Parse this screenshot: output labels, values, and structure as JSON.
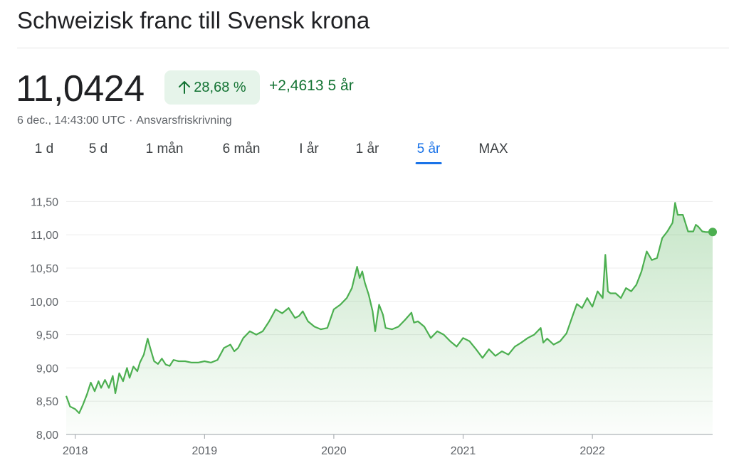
{
  "header": {
    "title": "Schweizisk franc till Svensk krona"
  },
  "quote": {
    "price": "11,0424",
    "change_percent": "28,68 %",
    "change_abs": "+2,4613",
    "change_period": "5 år",
    "timestamp": "6 dec., 14:43:00 UTC",
    "separator": "·",
    "disclaimer": "Ansvarsfriskrivning"
  },
  "tabs": [
    {
      "label": "1 d",
      "active": false
    },
    {
      "label": "5 d",
      "active": false
    },
    {
      "label": "1 mån",
      "active": false
    },
    {
      "label": "6 mån",
      "active": false
    },
    {
      "label": "I år",
      "active": false
    },
    {
      "label": "1 år",
      "active": false
    },
    {
      "label": "5 år",
      "active": true
    },
    {
      "label": "MAX",
      "active": false
    }
  ],
  "colors": {
    "positive": "#137333",
    "positive_bg": "#e6f4ea",
    "line": "#4caf50",
    "active_tab": "#1a73e8"
  },
  "icons": {
    "change": "arrow-up-icon"
  },
  "chart_data": {
    "type": "area",
    "ylim": [
      8.0,
      11.6
    ],
    "xlim": [
      2017.93,
      2022.93
    ],
    "yticks": [
      8.0,
      8.5,
      9.0,
      9.5,
      10.0,
      10.5,
      11.0,
      11.5
    ],
    "ytick_labels": [
      "8,00",
      "8,50",
      "9,00",
      "9,50",
      "10,00",
      "10,50",
      "11,00",
      "11,50"
    ],
    "xticks": [
      2018.0,
      2019.0,
      2020.0,
      2021.0,
      2022.0
    ],
    "xtick_labels": [
      "2018",
      "2019",
      "2020",
      "2021",
      "2022"
    ],
    "grid": true,
    "series": [
      {
        "x": [
          2017.93,
          2017.96,
          2018.0,
          2018.03,
          2018.06,
          2018.09,
          2018.12,
          2018.15,
          2018.18,
          2018.2,
          2018.23,
          2018.26,
          2018.29,
          2018.31,
          2018.34,
          2018.37,
          2018.4,
          2018.42,
          2018.45,
          2018.48,
          2018.5,
          2018.53,
          2018.56,
          2018.58,
          2018.61,
          2018.64,
          2018.67,
          2018.7,
          2018.73,
          2018.76,
          2018.8,
          2018.85,
          2018.9,
          2018.95,
          2019.0,
          2019.05,
          2019.1,
          2019.15,
          2019.2,
          2019.23,
          2019.26,
          2019.3,
          2019.35,
          2019.4,
          2019.45,
          2019.5,
          2019.55,
          2019.6,
          2019.65,
          2019.7,
          2019.73,
          2019.76,
          2019.8,
          2019.85,
          2019.9,
          2019.95,
          2020.0,
          2020.05,
          2020.1,
          2020.14,
          2020.18,
          2020.2,
          2020.22,
          2020.24,
          2020.27,
          2020.3,
          2020.32,
          2020.35,
          2020.38,
          2020.4,
          2020.45,
          2020.5,
          2020.55,
          2020.6,
          2020.62,
          2020.65,
          2020.7,
          2020.75,
          2020.8,
          2020.85,
          2020.9,
          2020.95,
          2021.0,
          2021.05,
          2021.1,
          2021.15,
          2021.2,
          2021.25,
          2021.3,
          2021.35,
          2021.4,
          2021.45,
          2021.5,
          2021.55,
          2021.6,
          2021.62,
          2021.65,
          2021.7,
          2021.75,
          2021.8,
          2021.85,
          2021.88,
          2021.92,
          2021.96,
          2022.0,
          2022.04,
          2022.08,
          2022.1,
          2022.12,
          2022.14,
          2022.18,
          2022.22,
          2022.26,
          2022.3,
          2022.34,
          2022.38,
          2022.42,
          2022.46,
          2022.5,
          2022.54,
          2022.58,
          2022.62,
          2022.64,
          2022.66,
          2022.7,
          2022.74,
          2022.78,
          2022.8,
          2022.82,
          2022.85,
          2022.88,
          2022.92,
          2022.93
        ],
        "y": [
          8.58,
          8.42,
          8.38,
          8.32,
          8.45,
          8.6,
          8.78,
          8.65,
          8.8,
          8.7,
          8.82,
          8.7,
          8.88,
          8.62,
          8.92,
          8.8,
          9.0,
          8.85,
          9.02,
          8.95,
          9.08,
          9.2,
          9.44,
          9.3,
          9.1,
          9.06,
          9.14,
          9.05,
          9.03,
          9.12,
          9.1,
          9.1,
          9.08,
          9.08,
          9.1,
          9.08,
          9.12,
          9.3,
          9.35,
          9.25,
          9.3,
          9.45,
          9.55,
          9.5,
          9.55,
          9.7,
          9.88,
          9.82,
          9.9,
          9.75,
          9.78,
          9.85,
          9.7,
          9.62,
          9.58,
          9.6,
          9.88,
          9.95,
          10.05,
          10.2,
          10.52,
          10.35,
          10.45,
          10.28,
          10.1,
          9.85,
          9.55,
          9.95,
          9.8,
          9.6,
          9.58,
          9.62,
          9.72,
          9.83,
          9.68,
          9.7,
          9.62,
          9.45,
          9.55,
          9.5,
          9.4,
          9.32,
          9.45,
          9.4,
          9.28,
          9.15,
          9.28,
          9.18,
          9.25,
          9.2,
          9.32,
          9.38,
          9.45,
          9.5,
          9.6,
          9.38,
          9.44,
          9.35,
          9.4,
          9.52,
          9.8,
          9.96,
          9.9,
          10.05,
          9.92,
          10.15,
          10.05,
          10.7,
          10.15,
          10.12,
          10.12,
          10.05,
          10.2,
          10.15,
          10.25,
          10.45,
          10.75,
          10.62,
          10.65,
          10.95,
          11.05,
          11.18,
          11.48,
          11.3,
          11.3,
          11.05,
          11.05,
          11.15,
          11.12,
          11.05,
          11.04,
          11.04,
          11.04
        ]
      }
    ],
    "last_point": 11.0424
  }
}
